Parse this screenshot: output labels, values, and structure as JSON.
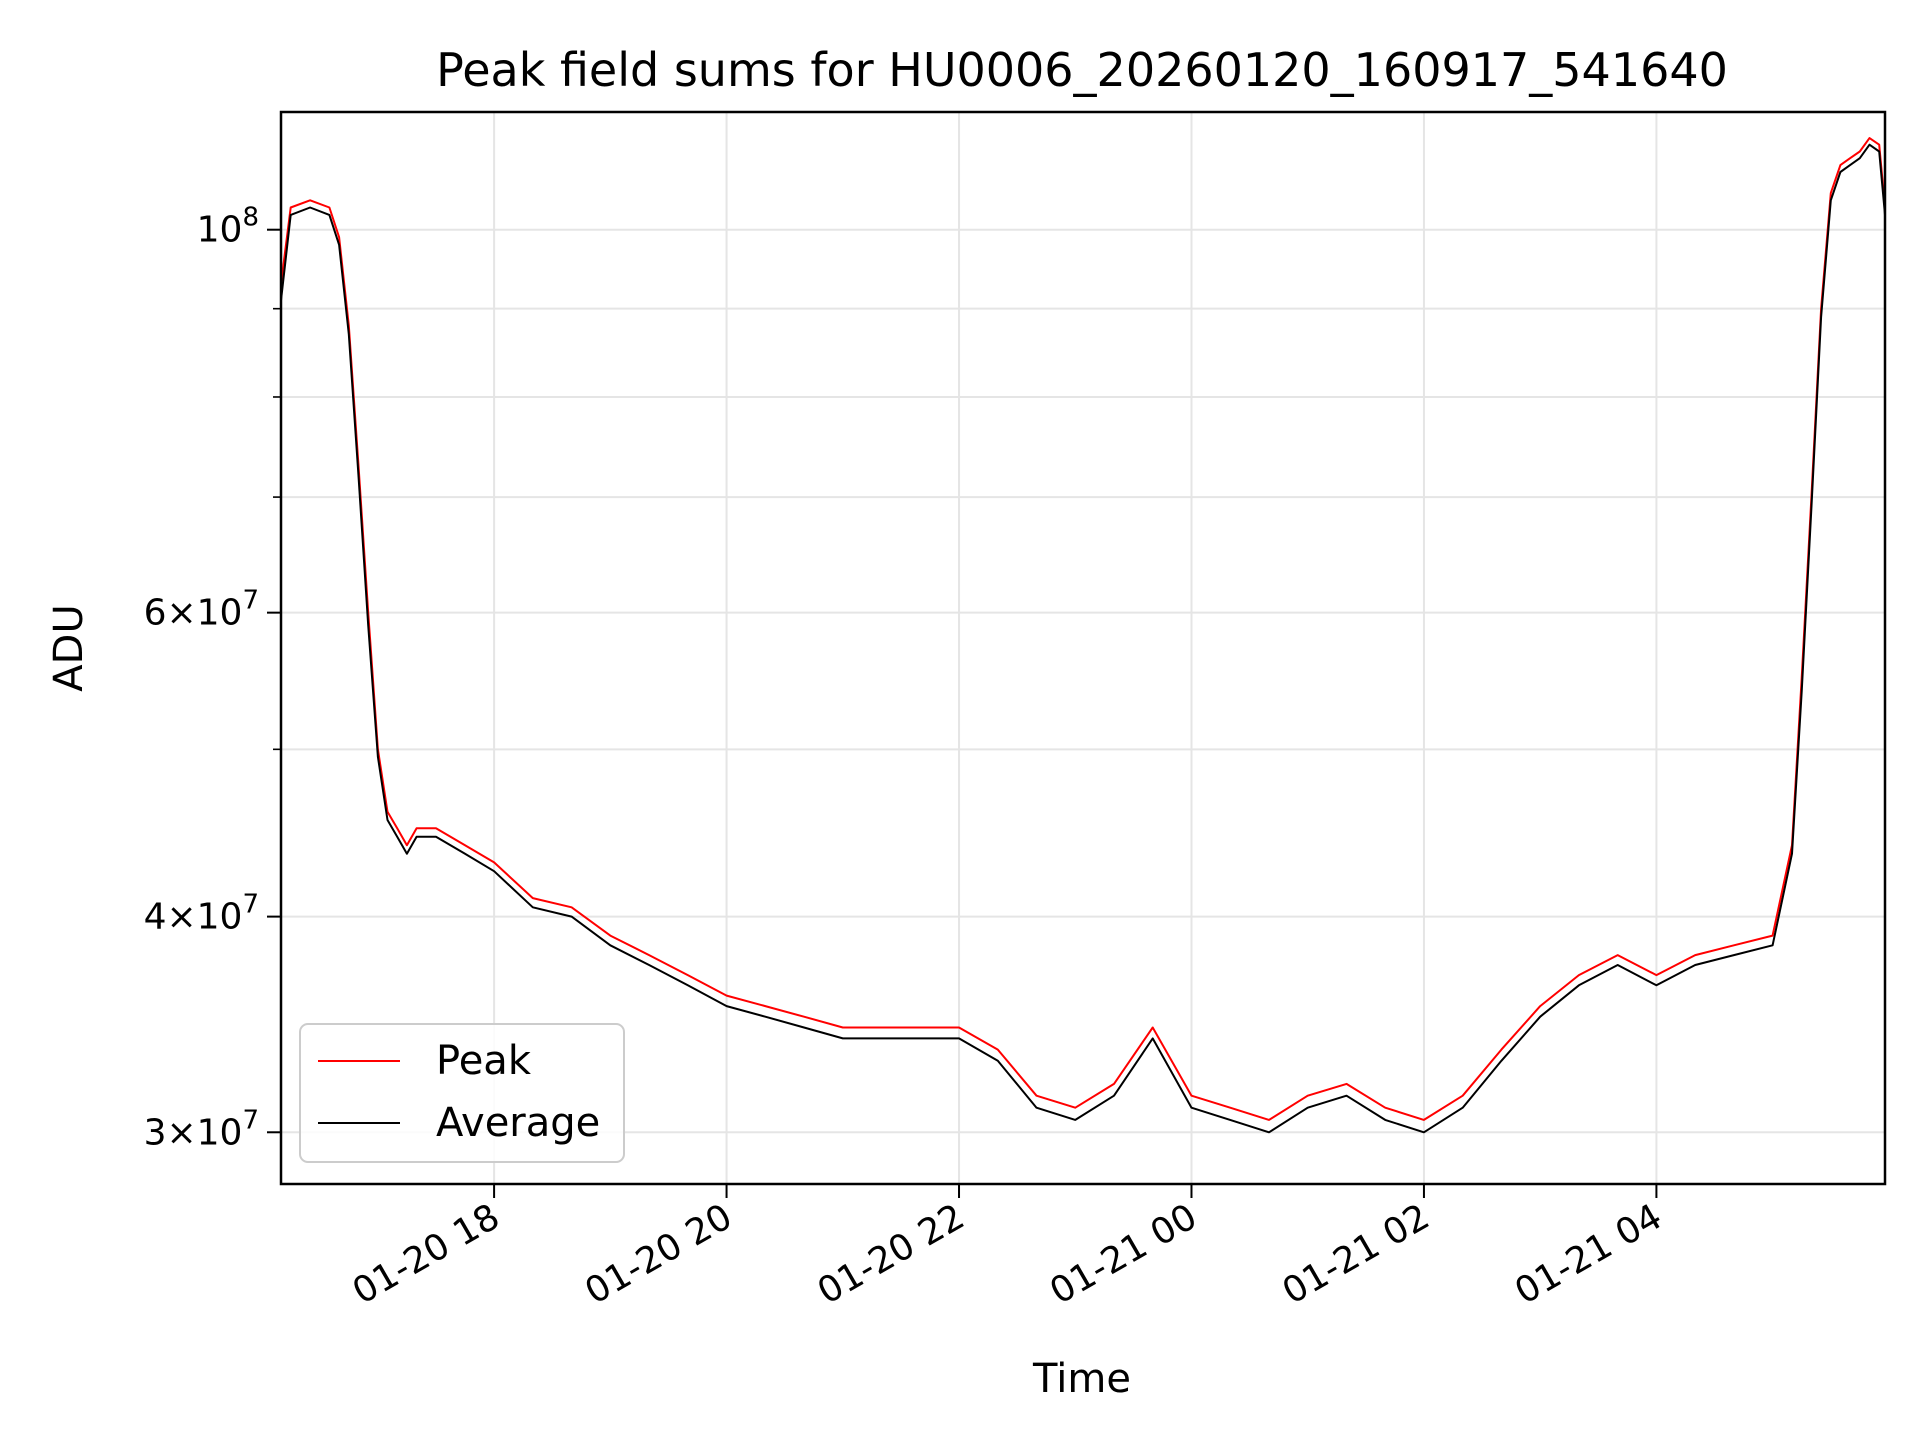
{
  "chart_data": {
    "type": "line",
    "title": "Peak field sums for HU0006_20260120_160917_541640",
    "xlabel": "Time",
    "ylabel": "ADU",
    "y_scale": "log",
    "x_range": [
      "2026-01-20 16:10",
      "2026-01-21 05:58"
    ],
    "ylim": [
      28000000,
      117000000
    ],
    "grid": true,
    "legend_position": "lower-left",
    "x_ticks": [
      "01-20 18",
      "01-20 20",
      "01-20 22",
      "01-21 00",
      "01-21 02",
      "01-21 04"
    ],
    "x_tick_values": [
      "2026-01-20 18:00",
      "2026-01-20 20:00",
      "2026-01-20 22:00",
      "2026-01-21 00:00",
      "2026-01-21 02:00",
      "2026-01-21 04:00"
    ],
    "y_tick_labels": [
      {
        "value": 100000000,
        "mant": "",
        "exp": "8"
      },
      {
        "value": 60000000,
        "mant": "6",
        "exp": "7"
      },
      {
        "value": 40000000,
        "mant": "4",
        "exp": "7"
      },
      {
        "value": 30000000,
        "mant": "3",
        "exp": "7"
      }
    ],
    "y_minor_ticks": [
      50000000,
      70000000,
      80000000,
      90000000
    ],
    "x": [
      "2026-01-20 16:10",
      "2026-01-20 16:15",
      "2026-01-20 16:25",
      "2026-01-20 16:35",
      "2026-01-20 16:40",
      "2026-01-20 16:45",
      "2026-01-20 16:50",
      "2026-01-20 16:55",
      "2026-01-20 17:00",
      "2026-01-20 17:05",
      "2026-01-20 17:10",
      "2026-01-20 17:15",
      "2026-01-20 17:20",
      "2026-01-20 17:30",
      "2026-01-20 17:45",
      "2026-01-20 18:00",
      "2026-01-20 18:20",
      "2026-01-20 18:40",
      "2026-01-20 19:00",
      "2026-01-20 19:20",
      "2026-01-20 19:40",
      "2026-01-20 20:00",
      "2026-01-20 20:20",
      "2026-01-20 20:40",
      "2026-01-20 21:00",
      "2026-01-20 21:20",
      "2026-01-20 21:40",
      "2026-01-20 22:00",
      "2026-01-20 22:20",
      "2026-01-20 22:40",
      "2026-01-20 23:00",
      "2026-01-20 23:20",
      "2026-01-20 23:40",
      "2026-01-21 00:00",
      "2026-01-21 00:20",
      "2026-01-21 00:40",
      "2026-01-21 01:00",
      "2026-01-21 01:20",
      "2026-01-21 01:40",
      "2026-01-21 02:00",
      "2026-01-21 02:20",
      "2026-01-21 02:40",
      "2026-01-21 03:00",
      "2026-01-21 03:20",
      "2026-01-21 03:40",
      "2026-01-21 04:00",
      "2026-01-21 04:20",
      "2026-01-21 04:40",
      "2026-01-21 05:00",
      "2026-01-21 05:10",
      "2026-01-21 05:15",
      "2026-01-21 05:20",
      "2026-01-21 05:25",
      "2026-01-21 05:30",
      "2026-01-21 05:35",
      "2026-01-21 05:40",
      "2026-01-21 05:45",
      "2026-01-21 05:50",
      "2026-01-21 05:55",
      "2026-01-21 05:58"
    ],
    "series": [
      {
        "name": "Peak",
        "color": "#ff0000",
        "values": [
          93000000,
          103000000,
          104000000,
          103000000,
          99000000,
          88000000,
          73000000,
          60000000,
          50000000,
          46000000,
          45000000,
          44000000,
          45000000,
          45000000,
          44000000,
          43000000,
          41000000,
          40500000,
          39000000,
          38000000,
          37000000,
          36000000,
          35500000,
          35000000,
          34500000,
          34500000,
          34500000,
          34500000,
          33500000,
          31500000,
          31000000,
          32000000,
          34500000,
          31500000,
          31000000,
          30500000,
          31500000,
          32000000,
          31000000,
          30500000,
          31500000,
          33500000,
          35500000,
          37000000,
          38000000,
          37000000,
          38000000,
          38500000,
          39000000,
          44000000,
          55000000,
          70000000,
          90000000,
          105000000,
          109000000,
          110000000,
          111000000,
          113000000,
          112000000,
          103000000
        ]
      },
      {
        "name": "Average",
        "color": "#000000",
        "values": [
          91000000,
          102000000,
          103000000,
          102000000,
          98000000,
          87000000,
          72000000,
          59000000,
          49500000,
          45500000,
          44500000,
          43500000,
          44500000,
          44500000,
          43500000,
          42500000,
          40500000,
          40000000,
          38500000,
          37500000,
          36500000,
          35500000,
          35000000,
          34500000,
          34000000,
          34000000,
          34000000,
          34000000,
          33000000,
          31000000,
          30500000,
          31500000,
          34000000,
          31000000,
          30500000,
          30000000,
          31000000,
          31500000,
          30500000,
          30000000,
          31000000,
          33000000,
          35000000,
          36500000,
          37500000,
          36500000,
          37500000,
          38000000,
          38500000,
          43500000,
          54000000,
          69000000,
          89000000,
          104000000,
          108000000,
          109000000,
          110000000,
          112000000,
          111000000,
          102000000
        ]
      }
    ]
  }
}
